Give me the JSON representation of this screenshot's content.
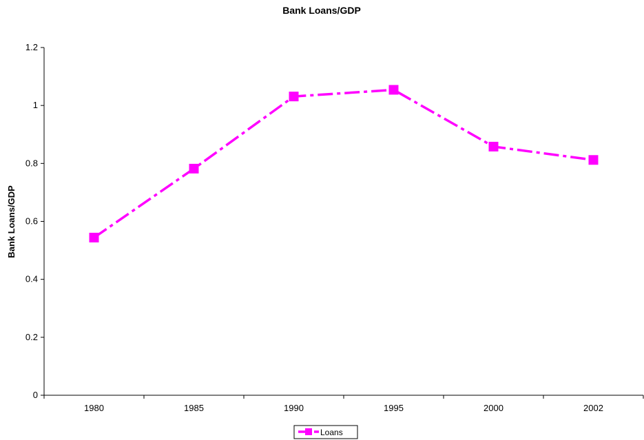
{
  "chart_data": {
    "type": "line",
    "title": "Bank Loans/GDP",
    "xlabel": "",
    "ylabel": "Bank Loans/GDP",
    "categories": [
      "1980",
      "1985",
      "1990",
      "1995",
      "2000",
      "2002"
    ],
    "series": [
      {
        "name": "Loans",
        "values": [
          0.544,
          0.782,
          1.031,
          1.054,
          0.858,
          0.812
        ],
        "color": "#ff00ff",
        "line_style": "dash-dot",
        "marker": "square"
      }
    ],
    "ylim": [
      0,
      1.2
    ],
    "yticks": [
      "0",
      "0.2",
      "0.4",
      "0.6",
      "0.8",
      "1",
      "1.2"
    ],
    "grid": false,
    "legend_position": "bottom-center"
  }
}
